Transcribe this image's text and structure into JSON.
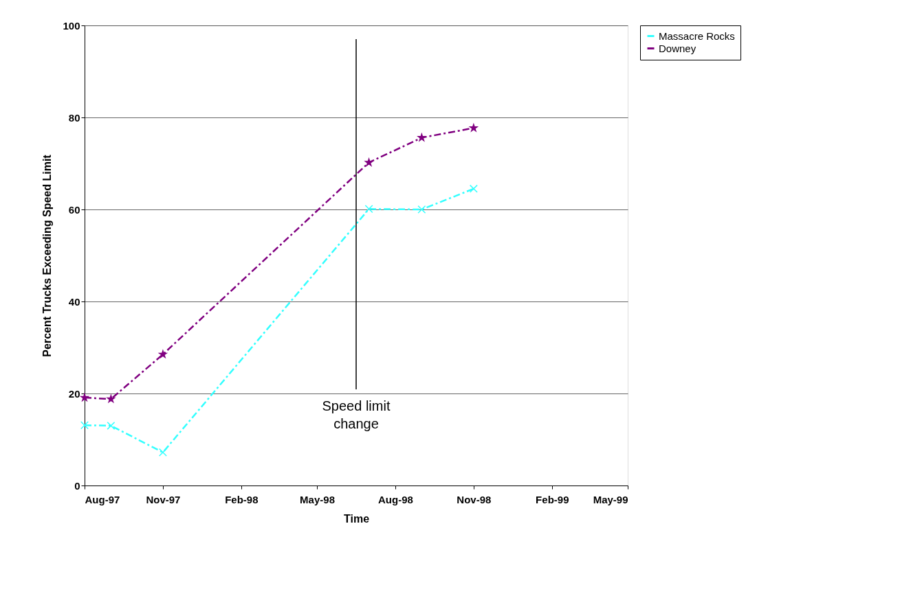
{
  "chart_data": {
    "type": "line",
    "xlabel": "Time",
    "ylabel": "Percent Trucks  Exceeding Speed Limit",
    "x": [
      "1997-08-01",
      "1997-09-01",
      "1997-11-01",
      "1998-07-01",
      "1998-09-01",
      "1998-11-01"
    ],
    "series": [
      {
        "name": "Massacre Rocks",
        "color": "#33ffff",
        "marker": "cross",
        "line_style": "dashed",
        "values": [
          13.1,
          13.0,
          7.2,
          60.1,
          60.0,
          64.5
        ]
      },
      {
        "name": "Downey",
        "color": "#800080",
        "marker": "star",
        "line_style": "dashed",
        "values": [
          19.1,
          18.8,
          28.5,
          70.2,
          75.6,
          77.7
        ]
      }
    ],
    "xlim": [
      "1997-08-01",
      "1999-05-01"
    ],
    "xticks": [
      {
        "value": "1997-08-01",
        "label": "Aug-97"
      },
      {
        "value": "1997-11-01",
        "label": "Nov-97"
      },
      {
        "value": "1998-02-01",
        "label": "Feb-98"
      },
      {
        "value": "1998-05-01",
        "label": "May-98"
      },
      {
        "value": "1998-08-01",
        "label": "Aug-98"
      },
      {
        "value": "1998-11-01",
        "label": "Nov-98"
      },
      {
        "value": "1999-02-01",
        "label": "Feb-99"
      },
      {
        "value": "1999-05-01",
        "label": "May-99"
      }
    ],
    "ylim": [
      0,
      100
    ],
    "yticks": [
      0,
      20,
      40,
      60,
      80,
      100
    ],
    "ref_lines": [
      {
        "axis": "x",
        "value": "1998-06-16",
        "label": "Speed limit change",
        "color": "#000000"
      }
    ],
    "grid": "y",
    "legend": "right"
  }
}
